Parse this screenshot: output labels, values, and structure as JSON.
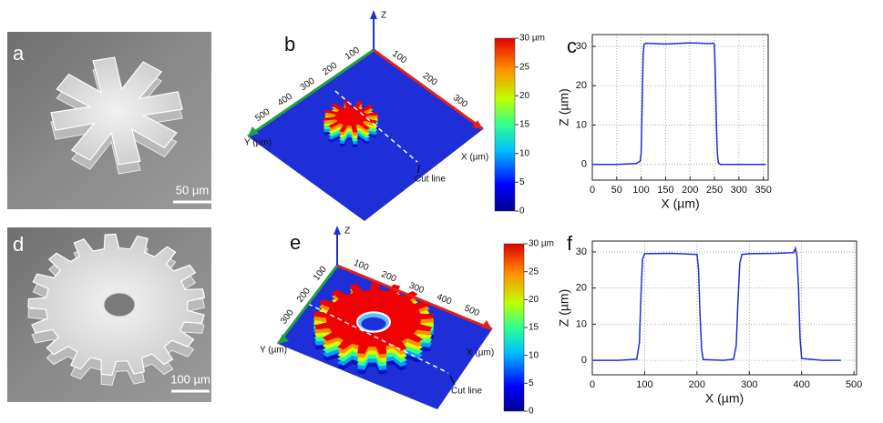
{
  "panels": {
    "a": {
      "label": "a",
      "scale_bar": "50 µm"
    },
    "b": {
      "label": "b",
      "z_label": "Z",
      "x_label": "X (µm)",
      "y_label": "Y (µm)",
      "x_ticks": [
        "100",
        "200",
        "300"
      ],
      "y_ticks": [
        "100",
        "200",
        "300",
        "400",
        "500"
      ],
      "cut_line": "Cut line",
      "colorbar_ticks": [
        "30 µm",
        "25",
        "20",
        "15",
        "10",
        "5",
        "0"
      ]
    },
    "d": {
      "label": "d",
      "scale_bar": "100 µm"
    },
    "e": {
      "label": "e",
      "z_label": "Z",
      "x_label": "X (µm)",
      "y_label": "Y (µm)",
      "x_ticks": [
        "100",
        "200",
        "300",
        "400",
        "500"
      ],
      "y_ticks": [
        "100",
        "200",
        "300"
      ],
      "cut_line": "Cut line",
      "colorbar_ticks": [
        "30 µm",
        "25",
        "20",
        "15",
        "10",
        "5",
        "0"
      ]
    }
  },
  "chart_data": [
    {
      "type": "line",
      "panel_label": "c",
      "xlabel": "X (µm)",
      "ylabel": "Z (µm)",
      "color": "#1f2fd6",
      "x": [
        0,
        50,
        90,
        98,
        100,
        102,
        104,
        106,
        110,
        150,
        200,
        240,
        248,
        250,
        252,
        254,
        256,
        258,
        262,
        300,
        355
      ],
      "values": [
        0,
        0,
        0.2,
        0.8,
        3,
        15,
        28,
        30.5,
        30.8,
        30.6,
        30.9,
        30.7,
        30.8,
        30.5,
        22,
        10,
        3,
        0.4,
        0,
        0,
        0
      ],
      "xlim": [
        0,
        360
      ],
      "ylim": [
        -4,
        33
      ],
      "xticks": [
        0,
        50,
        100,
        150,
        200,
        250,
        300,
        350
      ],
      "yticks": [
        0,
        10,
        20,
        30
      ],
      "grid": true
    },
    {
      "type": "line",
      "panel_label": "f",
      "xlabel": "X (µm)",
      "ylabel": "Z (µm)",
      "color": "#1f2fd6",
      "x": [
        0,
        50,
        85,
        90,
        93,
        96,
        100,
        150,
        200,
        203,
        206,
        209,
        212,
        250,
        270,
        275,
        278,
        282,
        286,
        300,
        350,
        385,
        388,
        391,
        394,
        397,
        400,
        440,
        475
      ],
      "values": [
        0,
        0,
        0.3,
        5,
        18,
        28,
        29.5,
        29.6,
        29.3,
        25,
        12,
        3,
        0.2,
        0,
        0.3,
        4,
        15,
        27,
        29.3,
        29.5,
        29.6,
        29.8,
        31,
        29,
        20,
        6,
        0.5,
        0,
        0
      ],
      "xlim": [
        0,
        505
      ],
      "ylim": [
        -4,
        33
      ],
      "xticks": [
        0,
        100,
        200,
        300,
        400,
        500
      ],
      "yticks": [
        0,
        10,
        20,
        30
      ],
      "grid": true
    }
  ]
}
